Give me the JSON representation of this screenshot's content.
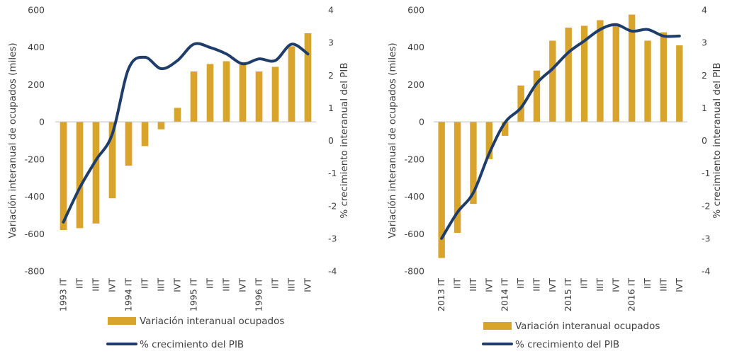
{
  "chart_data": [
    {
      "type": "bar",
      "categories": [
        "1993 IT",
        "IIT",
        "IIIT",
        "IVT",
        "1994 IT",
        "IIT",
        "IIIT",
        "IVT",
        "1995 IT",
        "IIT",
        "IIIT",
        "IVT",
        "1996 IT",
        "IIT",
        "IIIT",
        "IVT"
      ],
      "series": [
        {
          "name": "Variación interanual ocupados",
          "kind": "bar",
          "axis": "left",
          "color": "#D9A42B",
          "values": [
            -580,
            -570,
            -545,
            -410,
            -235,
            -130,
            -40,
            75,
            270,
            310,
            325,
            320,
            270,
            295,
            405,
            475
          ]
        },
        {
          "name": "% crecimiento del PIB",
          "kind": "line",
          "axis": "right",
          "color": "#1F3D6B",
          "values": [
            -2.5,
            -1.45,
            -0.6,
            0.2,
            2.2,
            2.55,
            2.2,
            2.45,
            2.95,
            2.85,
            2.65,
            2.35,
            2.5,
            2.45,
            2.95,
            2.65
          ]
        }
      ],
      "ylabel": "Variación interanual de ocupados (miles)",
      "y2label": "% crecimiento interanual del PIB",
      "ylim": [
        -800,
        600
      ],
      "y2lim": [
        -4,
        4
      ],
      "yticks": [
        -800,
        -600,
        -400,
        -200,
        0,
        200,
        400,
        600
      ],
      "y2ticks": [
        -4,
        -3,
        -2,
        -1,
        0,
        1,
        2,
        3,
        4
      ],
      "grid": false,
      "legend": "bottom"
    },
    {
      "type": "bar",
      "categories": [
        "2013 IT",
        "IIT",
        "IIIT",
        "IVT",
        "2014 IT",
        "IIT",
        "IIIT",
        "IVT",
        "2015 IT",
        "IIT",
        "IIIT",
        "IVT",
        "2016 IT",
        "IIT",
        "IIIT",
        "IVT"
      ],
      "series": [
        {
          "name": "Variación interanual ocupados",
          "kind": "bar",
          "axis": "left",
          "color": "#D9A42B",
          "values": [
            -730,
            -595,
            -440,
            -200,
            -75,
            195,
            275,
            435,
            505,
            515,
            545,
            525,
            575,
            435,
            480,
            410
          ]
        },
        {
          "name": "% crecimiento del PIB",
          "kind": "line",
          "axis": "right",
          "color": "#1F3D6B",
          "values": [
            -3.0,
            -2.2,
            -1.6,
            -0.4,
            0.55,
            1.0,
            1.75,
            2.2,
            2.7,
            3.05,
            3.4,
            3.55,
            3.35,
            3.4,
            3.2,
            3.2
          ]
        }
      ],
      "ylabel": "Variación interanual de ocupados (miles)",
      "y2label": "% crecimiento interanual del PIB",
      "ylim": [
        -800,
        600
      ],
      "y2lim": [
        -4,
        4
      ],
      "yticks": [
        -800,
        -600,
        -400,
        -200,
        0,
        200,
        400,
        600
      ],
      "y2ticks": [
        -4,
        -3,
        -2,
        -1,
        0,
        1,
        2,
        3,
        4
      ],
      "grid": false,
      "legend": "bottom"
    }
  ]
}
